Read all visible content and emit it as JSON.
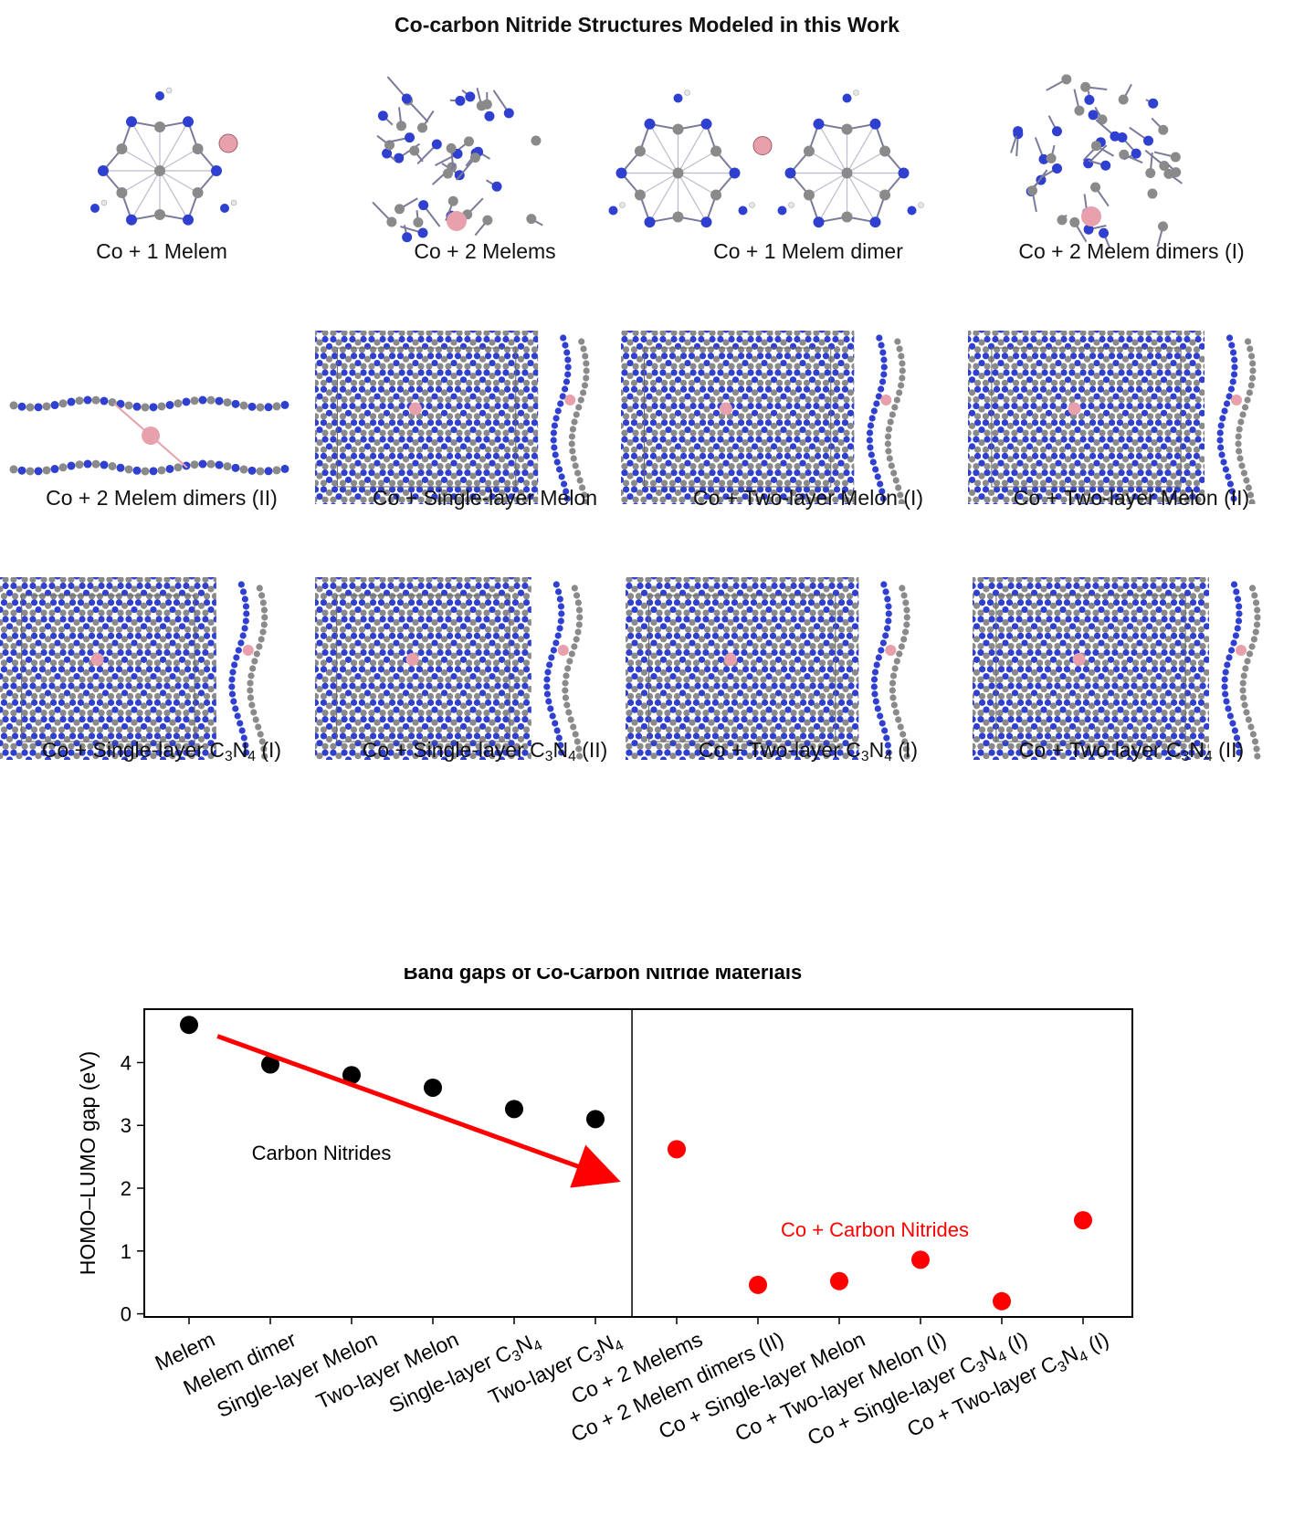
{
  "figure_title": "Co-carbon Nitride Structures Modeled in this Work",
  "structures": [
    {
      "label_main": "Co + 1 Melem",
      "label_sub": "",
      "label_tail": "",
      "kind": "molecule"
    },
    {
      "label_main": "Co + 2 Melems",
      "label_sub": "",
      "label_tail": "",
      "kind": "cage"
    },
    {
      "label_main": "Co + 1 Melem dimer",
      "label_sub": "",
      "label_tail": "",
      "kind": "dimer"
    },
    {
      "label_main": "Co + 2 Melem dimers (I)",
      "label_sub": "",
      "label_tail": "",
      "kind": "stack"
    },
    {
      "label_main": "Co + 2 Melem dimers (II)",
      "label_sub": "",
      "label_tail": "",
      "kind": "side"
    },
    {
      "label_main": "Co + Single-layer Melon",
      "label_sub": "",
      "label_tail": "",
      "kind": "periodic"
    },
    {
      "label_main": "Co + Two-layer Melon (I)",
      "label_sub": "",
      "label_tail": "",
      "kind": "periodic"
    },
    {
      "label_main": "Co + Two-layer Melon (II)",
      "label_sub": "",
      "label_tail": "",
      "kind": "periodic"
    },
    {
      "label_main": "Co + Single-layer C",
      "label_sub": "3",
      "label_tail": "N4 (I)",
      "kind": "periodic"
    },
    {
      "label_main": "Co + Single-layer C",
      "label_sub": "3",
      "label_tail": "N4 (II)",
      "kind": "periodic"
    },
    {
      "label_main": "Co + Two-layer C",
      "label_sub": "3",
      "label_tail": "N4 (I)",
      "kind": "periodic"
    },
    {
      "label_main": "Co + Two-layer C",
      "label_sub": "3",
      "label_tail": "N4 (II)",
      "kind": "periodic"
    }
  ],
  "colors": {
    "nitrogen": "#2f3fd0",
    "carbon": "#8a8a8a",
    "cobalt": "#e8a0ac",
    "hydrogen": "#e6e6e6",
    "bond": "#7a7a9a"
  },
  "chart_data": {
    "type": "scatter",
    "title": "Band gaps of Co-Carbon Nitride Materials",
    "xlabel": "",
    "ylabel": "HOMO–LUMO gap (eV)",
    "ylim": [
      -0.05,
      4.85
    ],
    "yticks": [
      0,
      1,
      2,
      3,
      4
    ],
    "categories": [
      "Melem",
      "Melem dimer",
      "Single-layer Melon",
      "Two-layer Melon",
      "Single-layer C3N4",
      "Two-layer C3N4",
      "Co + 2 Melems",
      "Co + 2 Melem dimers (II)",
      "Co + Single-layer Melon",
      "Co + Two-layer Melon (I)",
      "Co + Single-layer C3N4 (I)",
      "Co + Two-layer C3N4 (I)"
    ],
    "series": [
      {
        "name": "Carbon Nitrides",
        "color": "#000000",
        "values": [
          4.6,
          3.97,
          3.8,
          3.6,
          3.26,
          3.1,
          null,
          null,
          null,
          null,
          null,
          null
        ]
      },
      {
        "name": "Co + Carbon Nitrides",
        "color": "#ff0000",
        "values": [
          null,
          null,
          null,
          null,
          null,
          null,
          2.62,
          0.46,
          0.52,
          0.86,
          0.2,
          1.49
        ]
      }
    ],
    "annotations": [
      {
        "text": "Carbon Nitrides",
        "color": "#000000"
      },
      {
        "text": "Co + Carbon Nitrides",
        "color": "#ff0000"
      }
    ],
    "arrow": {
      "from": [
        0.35,
        4.42
      ],
      "to": [
        5.1,
        2.2
      ],
      "color": "#ff0000"
    },
    "divider_x": 5.45,
    "grid": false,
    "legend": "none"
  }
}
